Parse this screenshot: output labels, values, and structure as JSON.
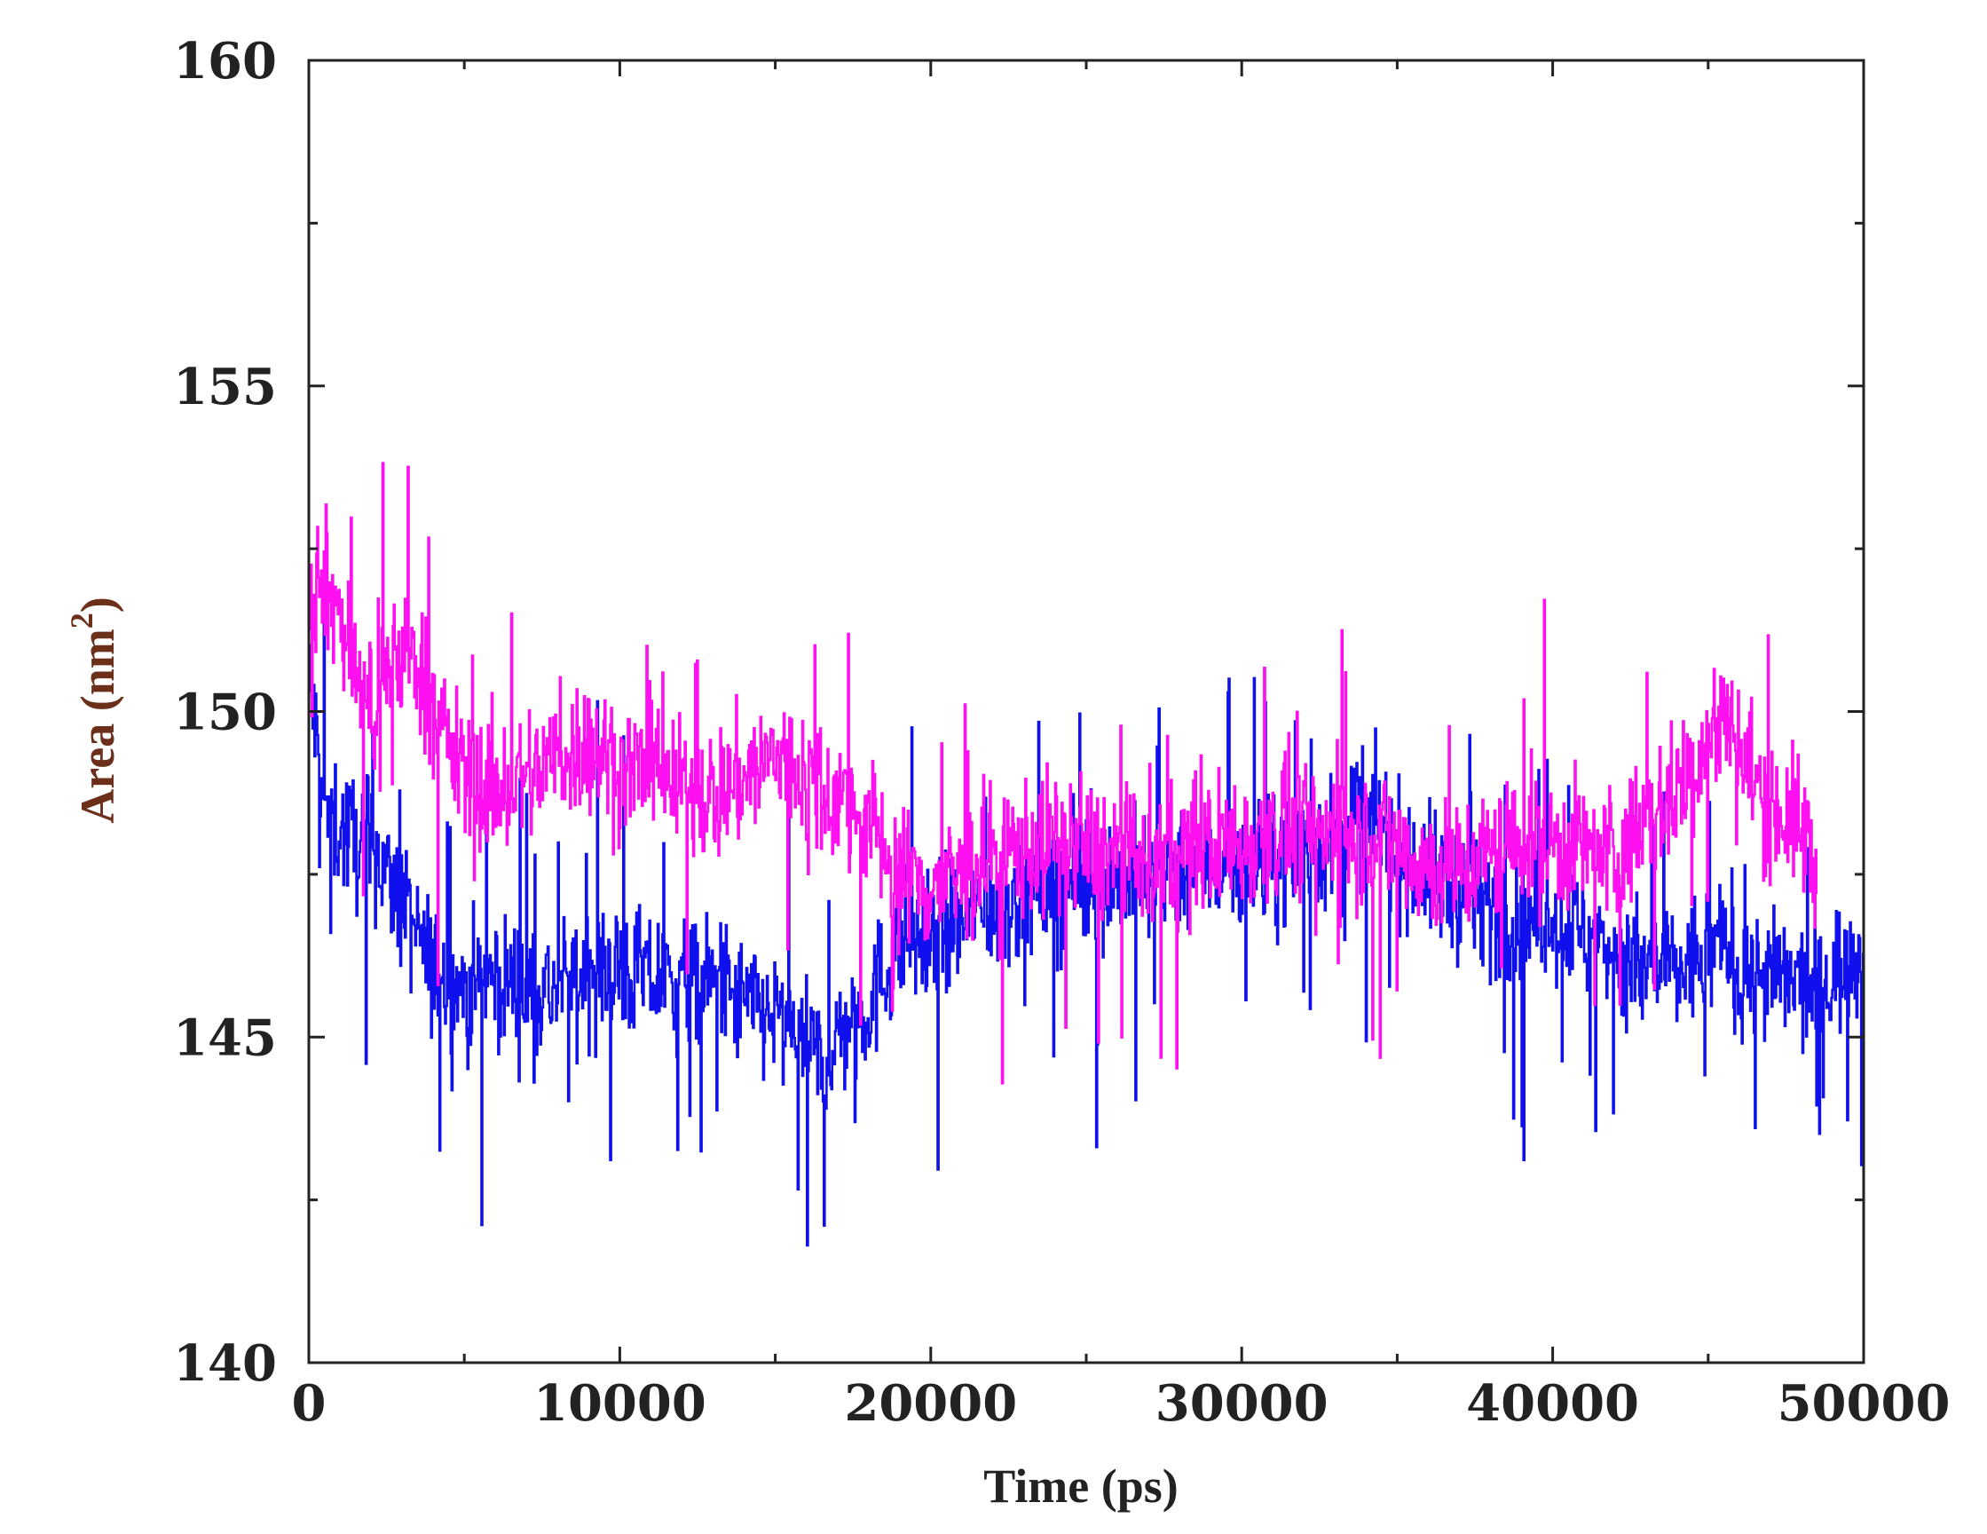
{
  "chart_data": {
    "type": "line",
    "title": "",
    "xlabel": "Time (ps)",
    "ylabel": "Area (nm",
    "ylabel_sup": "2",
    "ylabel_close": ")",
    "xlim": [
      0,
      50000
    ],
    "ylim": [
      140,
      160
    ],
    "x_ticks": [
      "0",
      "10000",
      "20000",
      "30000",
      "40000",
      "50000"
    ],
    "y_ticks": [
      "140",
      "145",
      "150",
      "155",
      "160"
    ],
    "grid": false,
    "legend": "none",
    "series": [
      {
        "color": "#1010ee",
        "x": [
          0,
          500,
          1000,
          1500,
          2000,
          2500,
          3000,
          3500,
          4000,
          4500,
          5000,
          6000,
          7000,
          8000,
          9000,
          10000,
          11000,
          12000,
          13000,
          14000,
          15000,
          15500,
          16000,
          16500,
          17000,
          17500,
          18000,
          18500,
          19000,
          20000,
          21000,
          22000,
          23000,
          24000,
          25000,
          26000,
          27000,
          28000,
          29000,
          30000,
          31000,
          32000,
          33000,
          33500,
          34000,
          35000,
          36000,
          37000,
          38000,
          39000,
          40000,
          41000,
          42000,
          43000,
          44000,
          45000,
          45500,
          46000,
          47000,
          48000,
          48500,
          49000,
          49500,
          50000
        ],
        "y": [
          150.5,
          148.5,
          148.2,
          148.0,
          148.0,
          147.5,
          147.0,
          146.5,
          146.0,
          145.8,
          145.8,
          145.9,
          145.8,
          145.7,
          146.0,
          146.0,
          145.9,
          145.8,
          145.8,
          145.5,
          145.3,
          145.0,
          144.8,
          144.6,
          145.0,
          145.3,
          145.5,
          146.0,
          146.5,
          146.6,
          146.8,
          147.0,
          147.2,
          147.3,
          147.3,
          147.4,
          147.5,
          147.7,
          147.7,
          147.6,
          147.7,
          147.8,
          148.0,
          148.5,
          148.4,
          147.9,
          147.5,
          147.2,
          147.0,
          146.9,
          146.8,
          146.6,
          146.3,
          146.0,
          146.0,
          146.3,
          146.5,
          146.0,
          145.9,
          145.8,
          145.5,
          146.0,
          146.2,
          146.2
        ]
      },
      {
        "color": "#ff10f0",
        "x": [
          0,
          500,
          1000,
          1500,
          2000,
          2500,
          3000,
          3500,
          4000,
          4500,
          5000,
          6000,
          7000,
          8000,
          9000,
          10000,
          11000,
          12000,
          13000,
          14000,
          15000,
          16000,
          17000,
          18000,
          19000,
          20000,
          21000,
          22000,
          23000,
          24000,
          25000,
          26000,
          27000,
          28000,
          29000,
          30000,
          31000,
          32000,
          33000,
          34000,
          35000,
          36000,
          37000,
          38000,
          39000,
          40000,
          41000,
          42000,
          43000,
          44000,
          45000,
          45500,
          46000,
          47000,
          48000,
          48500
        ],
        "y": [
          152.0,
          152.0,
          151.5,
          150.5,
          150.0,
          150.5,
          151.0,
          150.8,
          150.0,
          149.5,
          149.0,
          148.8,
          149.0,
          149.3,
          149.5,
          149.2,
          149.0,
          148.8,
          148.7,
          149.0,
          149.3,
          149.0,
          148.7,
          148.3,
          147.5,
          147.3,
          147.5,
          147.8,
          147.9,
          148.0,
          147.9,
          147.8,
          147.6,
          147.8,
          148.0,
          148.0,
          148.2,
          148.2,
          148.1,
          148.2,
          148.0,
          147.6,
          147.6,
          147.8,
          148.1,
          148.0,
          147.9,
          147.8,
          148.3,
          148.8,
          149.5,
          150.0,
          149.3,
          148.6,
          148.2,
          147.5
        ]
      }
    ]
  }
}
